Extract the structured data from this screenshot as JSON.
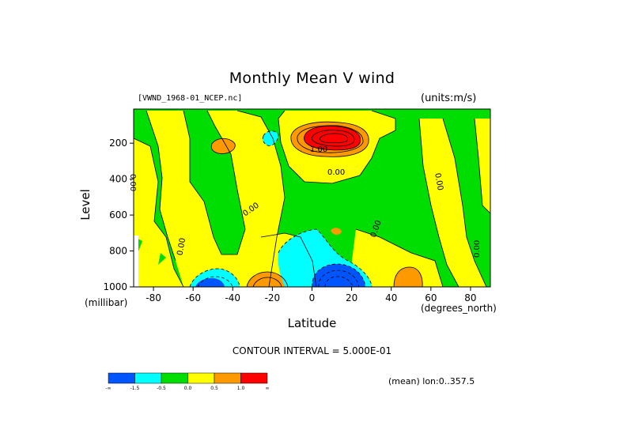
{
  "chart_data": {
    "type": "contour",
    "title": "Monthly Mean V wind",
    "dataset": "[VWND_1968-01_NCEP.nc]",
    "units": "(units:m/s)",
    "xlabel": "Latitude",
    "x_units": "(degrees_north)",
    "ylabel": "Level",
    "y_units": "(millibar)",
    "xlim": [
      -90,
      90
    ],
    "ylim": [
      1000,
      10
    ],
    "x_ticks": [
      -80,
      -60,
      -40,
      -20,
      0,
      20,
      40,
      60,
      80
    ],
    "y_ticks": [
      1000,
      800,
      600,
      400,
      200
    ],
    "contour_interval_text": "CONTOUR INTERVAL = 5.000E-01",
    "mean_text": "(mean) lon:0..357.5",
    "contour_labels": [
      "0.00",
      "0.00",
      "0.00",
      "0.00",
      "0.00",
      "0.00",
      "0.00",
      "1.00"
    ],
    "colorbar": {
      "labels": [
        "-∞",
        "-1.5",
        "-0.5",
        "0.0",
        "0.5",
        "1.0",
        "∞"
      ],
      "colors": [
        "#0055ff",
        "#00ffff",
        "#00dd00",
        "#ffff00",
        "#ff9900",
        "#ff0000"
      ]
    },
    "features": [
      {
        "type": "positive_max",
        "lat": 10,
        "level": 150,
        "value_approx": 3.0
      },
      {
        "type": "positive_max",
        "lat": -22,
        "level": 990,
        "value_approx": 1.5
      },
      {
        "type": "positive_max",
        "lat": 55,
        "level": 970,
        "value_approx": 0.8
      },
      {
        "type": "negative_min",
        "lat": 10,
        "level": 960,
        "value_approx": -3.0
      },
      {
        "type": "negative_min",
        "lat": -48,
        "level": 990,
        "value_approx": -2.0
      }
    ]
  }
}
